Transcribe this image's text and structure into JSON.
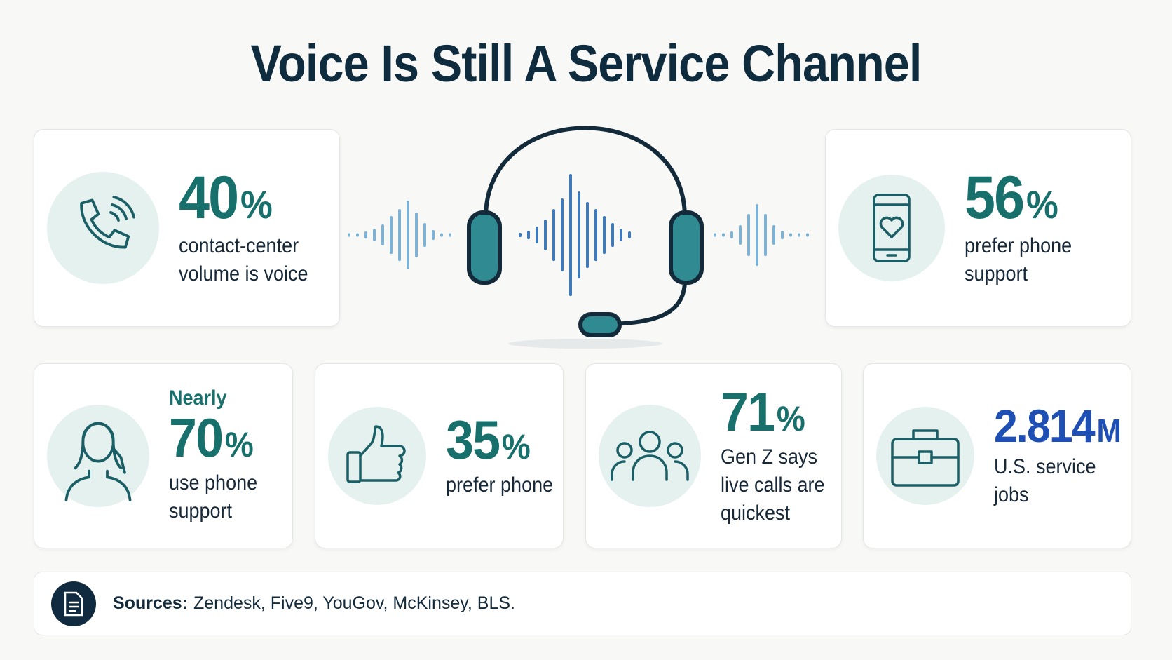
{
  "title": "Voice Is Still A Service Channel",
  "stats": [
    {
      "value": "40",
      "unit": "%",
      "caption": [
        "contact-center",
        "volume is voice"
      ]
    },
    {
      "value": "56",
      "unit": "%",
      "caption": [
        "prefer phone",
        "support"
      ]
    },
    {
      "prefix": "Nearly",
      "value": "70",
      "unit": "%",
      "caption": [
        "use phone",
        "support"
      ]
    },
    {
      "value": "35",
      "unit": "%",
      "caption": [
        "prefer phone"
      ]
    },
    {
      "value": "71",
      "unit": "%",
      "caption": [
        "Gen Z says",
        "live calls are",
        "quickest"
      ]
    },
    {
      "value": "2.814",
      "unit": "M",
      "caption": [
        "U.S. service",
        "jobs"
      ]
    }
  ],
  "sources": {
    "label": "Sources:",
    "text": "Zendesk, Five9, YouGov, McKinsey, BLS."
  }
}
